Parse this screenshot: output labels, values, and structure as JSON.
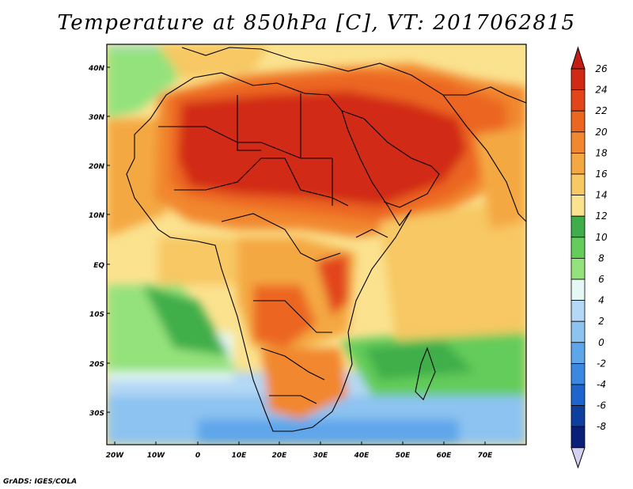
{
  "title": "Temperature at 850hPa [C], VT: 2017062815",
  "credit": "GrADS: IGES/COLA",
  "axes": {
    "lat_labels": [
      "40N",
      "30N",
      "20N",
      "10N",
      "EQ",
      "10S",
      "20S",
      "30S"
    ],
    "lon_labels": [
      "20W",
      "10W",
      "0",
      "10E",
      "20E",
      "30E",
      "40E",
      "50E",
      "60E",
      "70E"
    ]
  },
  "colorbar": {
    "levels": [
      "26",
      "24",
      "22",
      "20",
      "18",
      "16",
      "14",
      "12",
      "10",
      "8",
      "6",
      "4",
      "2",
      "0",
      "-2",
      "-4",
      "-6",
      "-8"
    ],
    "colors": [
      "#d12a14",
      "#e2451a",
      "#ec6620",
      "#f1872e",
      "#f4a843",
      "#f7c863",
      "#fbe28f",
      "#3fae4a",
      "#63cc5a",
      "#94e27c",
      "#e6f8f4",
      "#b4d8f5",
      "#8cc3f1",
      "#5ea6ea",
      "#3a88df",
      "#1d64cc",
      "#0e3f9e",
      "#0a1f78"
    ],
    "top_arrow_color": "#c41e12",
    "bottom_arrow_color": "#d6d0f0"
  }
}
